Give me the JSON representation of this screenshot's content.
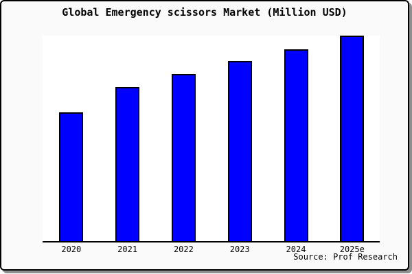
{
  "title": "Global Emergency scissors Market (Million USD)",
  "source": "Source: Prof Research",
  "colors": {
    "bar_fill": "#0000FF",
    "bar_border": "#000000",
    "figure_background": "#FAFAFA",
    "plot_background": "#FFFFFF",
    "axis_line": "#000000",
    "text": "#000000",
    "frame_border": "#000000",
    "frame_shadow": "#8F8F8F"
  },
  "chart_data": {
    "type": "bar",
    "title": "Global Emergency scissors Market (Million USD)",
    "categories": [
      "2020",
      "2021",
      "2022",
      "2023",
      "2024",
      "2025e"
    ],
    "values": [
      62.7,
      75.0,
      81.3,
      87.7,
      93.3,
      100.0
    ],
    "values_note": "y-axis has no tick labels; values are relative bar heights as % of the tallest (2025e) bar",
    "xlabel": "",
    "ylabel": "",
    "ylim_relative": [
      0,
      100
    ],
    "grid": false,
    "legend": false,
    "y_axis_ticks_visible": false,
    "x_axis_line": true,
    "source": "Source: Prof Research"
  }
}
